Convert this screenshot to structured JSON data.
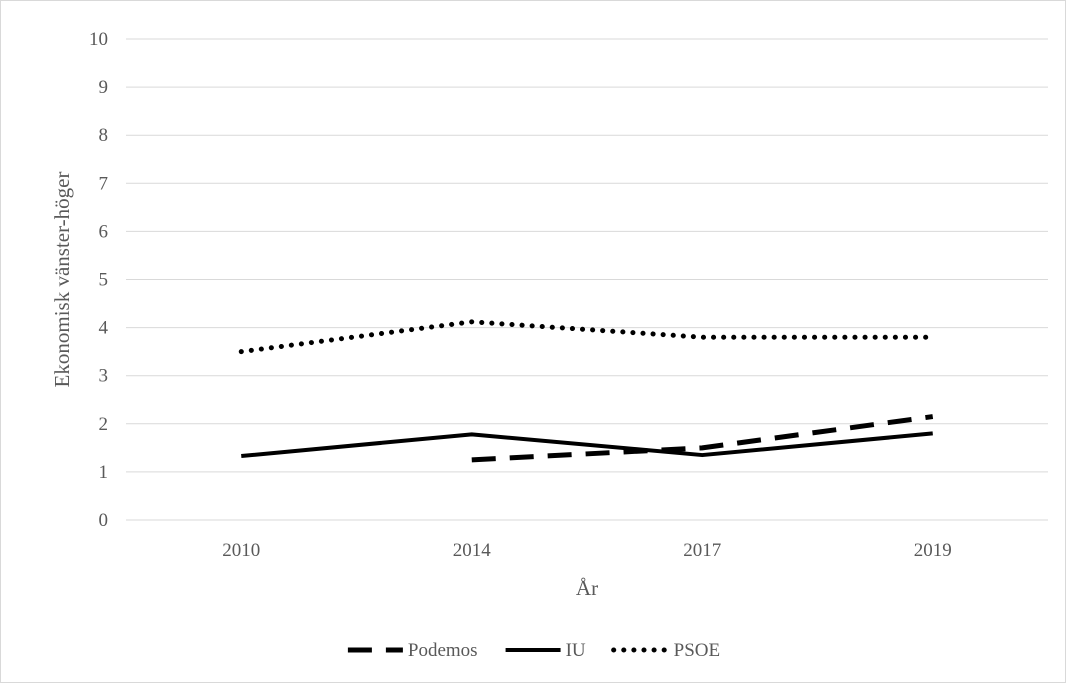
{
  "chart_data": {
    "type": "line",
    "title": "",
    "xlabel": "År",
    "ylabel": "Ekonomisk vänster-höger",
    "categories": [
      "2010",
      "2014",
      "2017",
      "2019"
    ],
    "ylim": [
      0,
      10
    ],
    "yticks": [
      "0",
      "1",
      "2",
      "3",
      "4",
      "5",
      "6",
      "7",
      "8",
      "9",
      "10"
    ],
    "grid": true,
    "legend_position": "bottom",
    "series": [
      {
        "name": "Podemos",
        "values": [
          null,
          1.25,
          1.5,
          2.15
        ],
        "style": "dashed",
        "color": "#000000"
      },
      {
        "name": "IU",
        "values": [
          1.33,
          1.78,
          1.35,
          1.8
        ],
        "style": "solid",
        "color": "#000000"
      },
      {
        "name": "PSOE",
        "values": [
          3.5,
          4.12,
          3.8,
          3.8
        ],
        "style": "dotted",
        "color": "#000000"
      }
    ]
  }
}
